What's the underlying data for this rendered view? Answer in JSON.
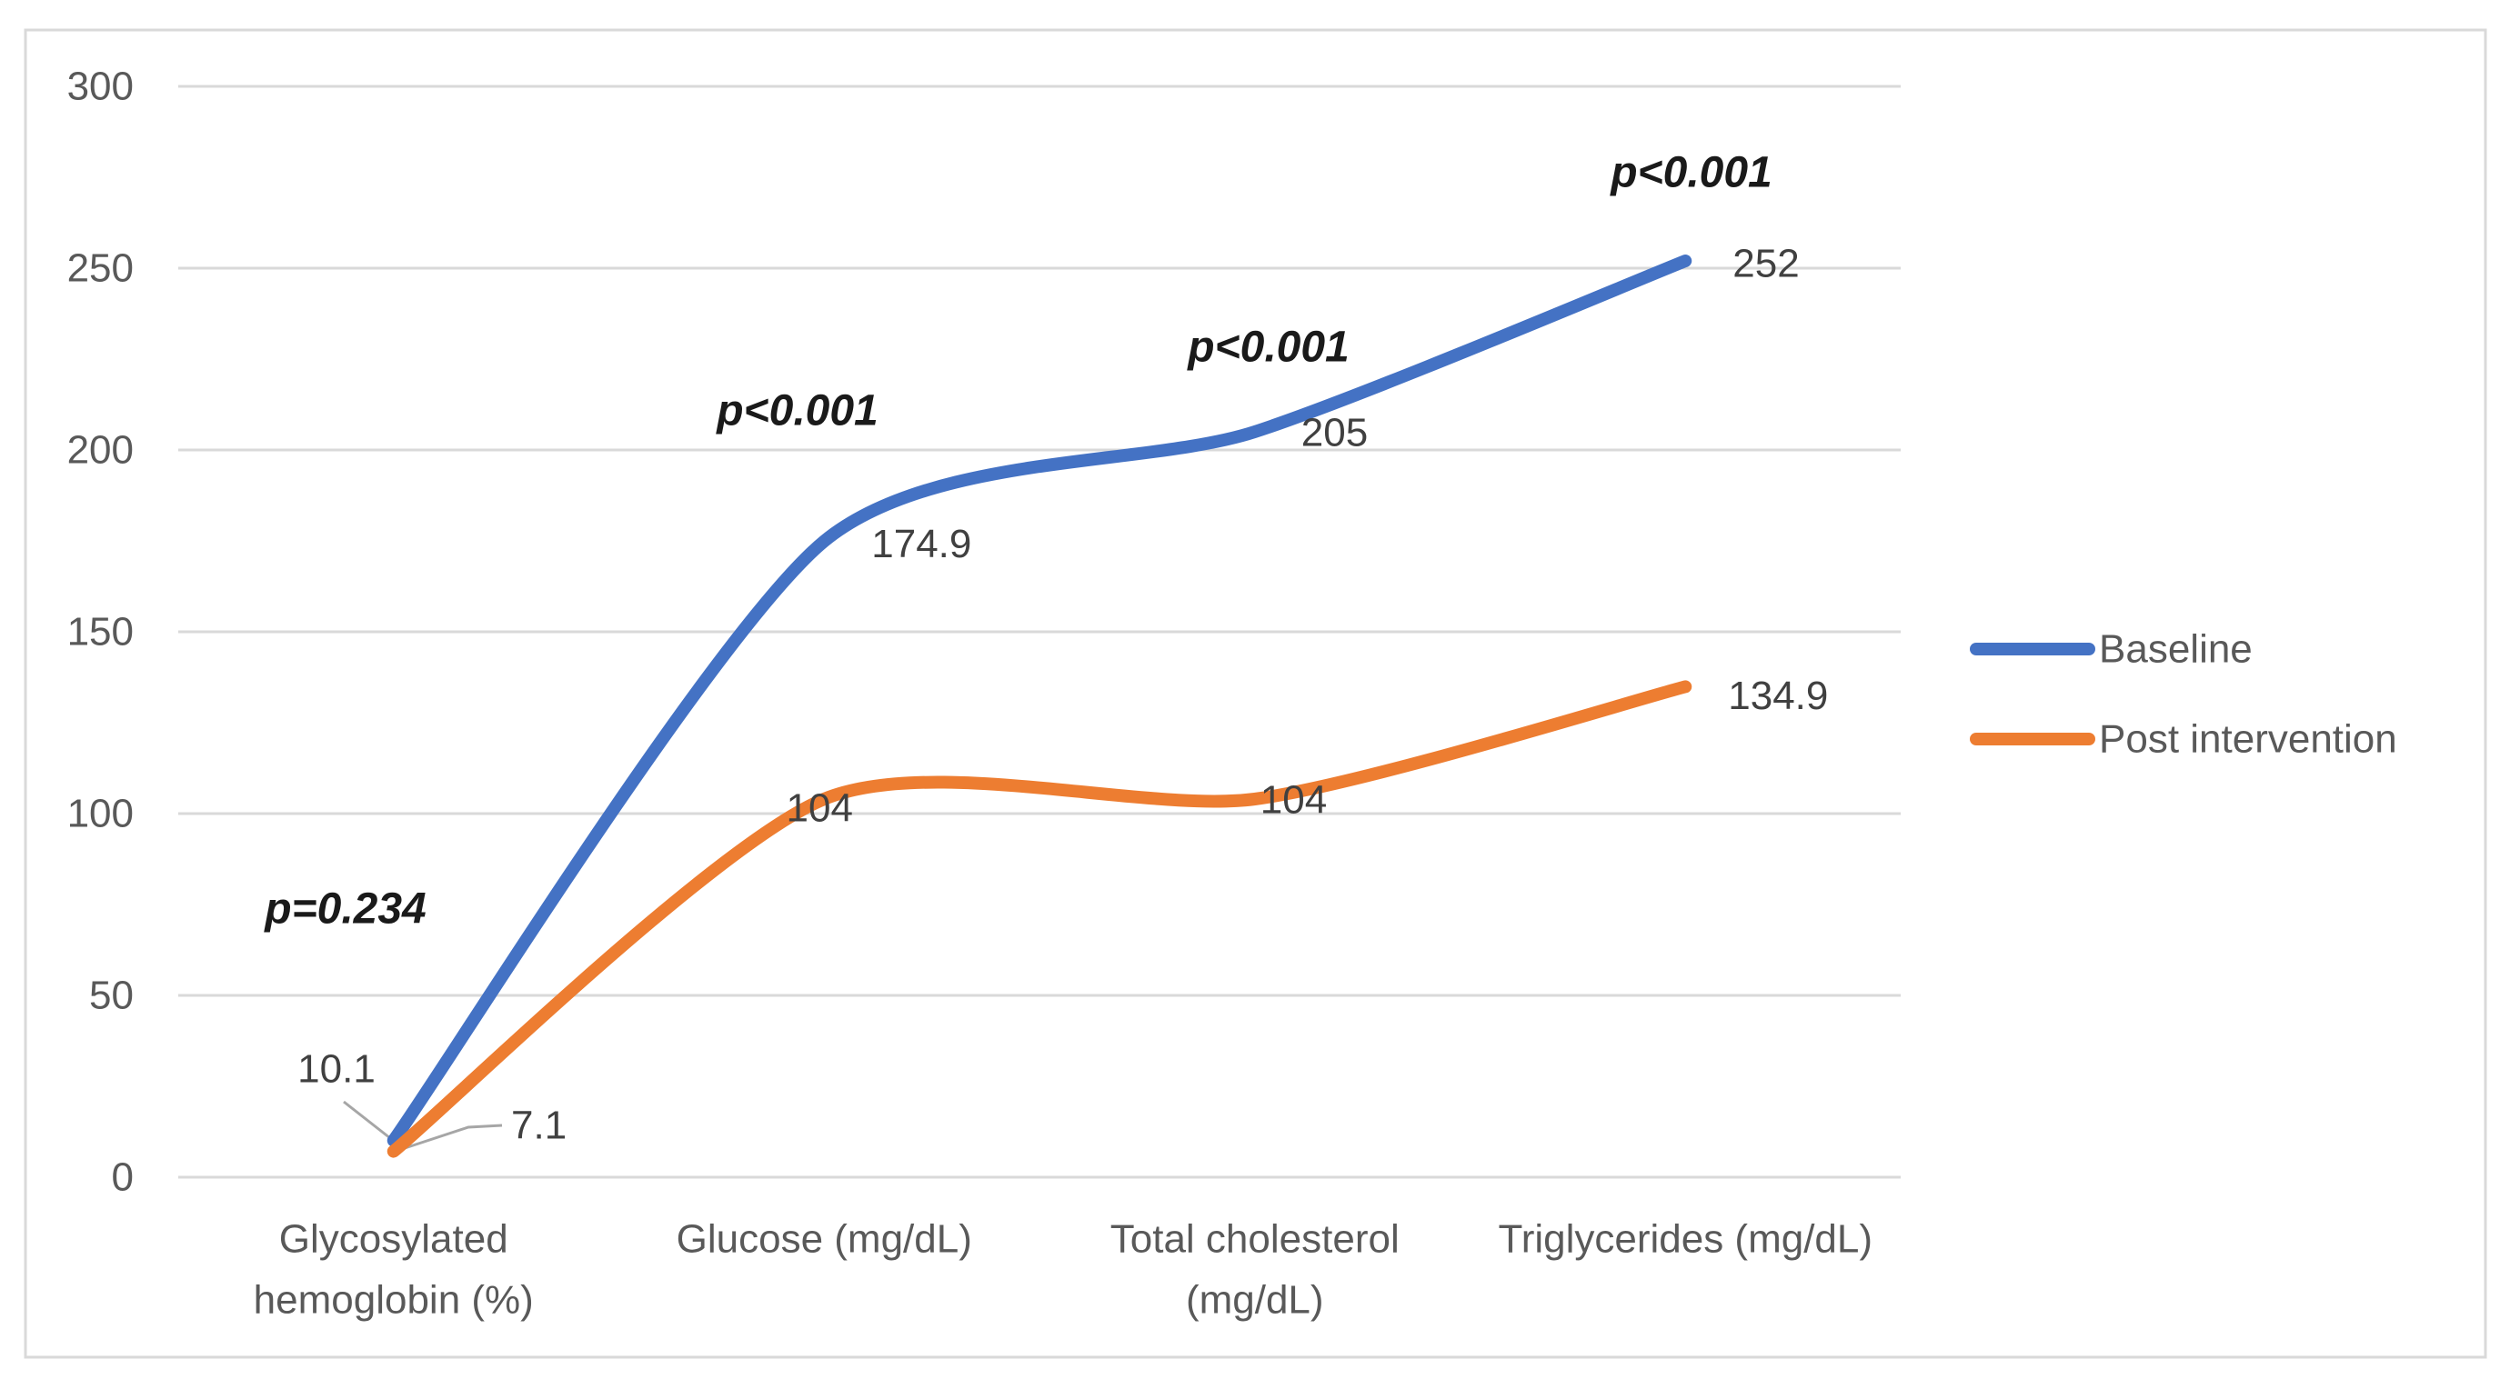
{
  "chart_data": {
    "type": "line",
    "title": "",
    "categories": [
      "Glycosylated hemoglobin (%)",
      "Glucose (mg/dL)",
      "Total cholesterol (mg/dL)",
      "Triglycerides (mg/dL)"
    ],
    "categories_display": [
      [
        "Glycosylated",
        "hemoglobin (%)"
      ],
      [
        "Glucose (mg/dL)"
      ],
      [
        "Total cholesterol",
        "(mg/dL)"
      ],
      [
        "Triglycerides (mg/dL)"
      ]
    ],
    "series": [
      {
        "name": "Baseline",
        "color": "#4472C4",
        "values": [
          10.1,
          174.9,
          205,
          252
        ],
        "labels": [
          "10.1",
          "174.9",
          "205",
          "252"
        ]
      },
      {
        "name": "Post intervention",
        "color": "#ED7D31",
        "values": [
          7.1,
          104,
          104,
          134.9
        ],
        "labels": [
          "7.1",
          "104",
          "104",
          "134.9"
        ]
      }
    ],
    "annotations": [
      "p=0.234",
      "p<0.001",
      "p<0.001",
      "p<0.001"
    ],
    "y_axis": {
      "min": 0,
      "max": 300,
      "step": 50,
      "ticks": [
        "300",
        "250",
        "200",
        "150",
        "100",
        "50",
        "0"
      ]
    },
    "xlabel": "",
    "ylabel": "",
    "grid": true,
    "legend_position": "right"
  },
  "colors": {
    "baseline": "#4472C4",
    "post_intervention": "#ED7D31",
    "gridline": "#D9D9D9",
    "frame_border": "#D9D9D9",
    "axis_text": "#595959",
    "data_label_text": "#404040",
    "annotation_text": "#1a1a1a",
    "leader_line": "#A6A6A6",
    "background": "#ffffff"
  }
}
